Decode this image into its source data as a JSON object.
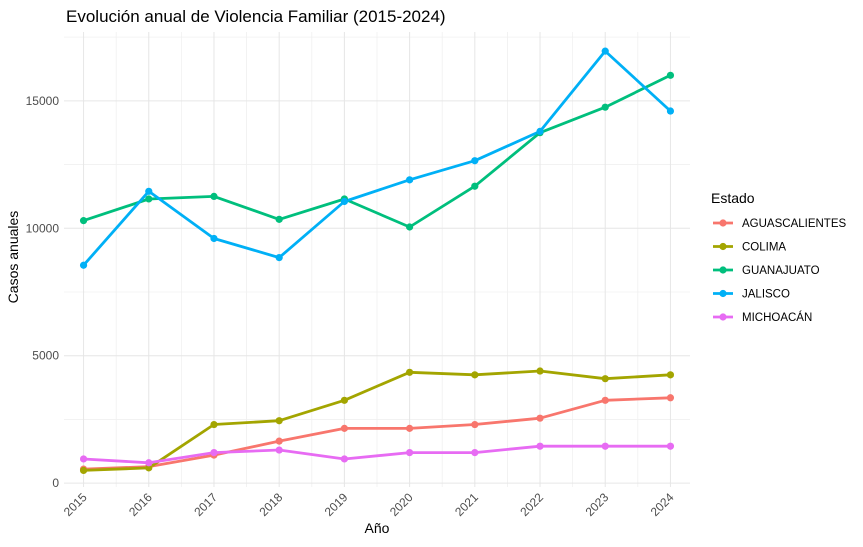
{
  "chart_data": {
    "type": "line",
    "title": "Evolución anual de Violencia Familiar (2015-2024)",
    "xlabel": "Año",
    "ylabel": "Casos anuales",
    "x": [
      "2015",
      "2016",
      "2017",
      "2018",
      "2019",
      "2020",
      "2021",
      "2022",
      "2023",
      "2024"
    ],
    "y_ticks": [
      0,
      5000,
      10000,
      15000
    ],
    "ylim": [
      -150,
      17700
    ],
    "grid": true,
    "legend": {
      "title": "Estado",
      "position": "right"
    },
    "series": [
      {
        "name": "AGUASCALIENTES",
        "color": "#F8766D",
        "values": [
          550,
          650,
          1100,
          1650,
          2150,
          2150,
          2300,
          2550,
          3250,
          3350
        ]
      },
      {
        "name": "COLIMA",
        "color": "#A3A500",
        "values": [
          500,
          600,
          2300,
          2450,
          3250,
          4350,
          4250,
          4400,
          4100,
          4250
        ]
      },
      {
        "name": "GUANAJUATO",
        "color": "#00BF7D",
        "values": [
          10300,
          11150,
          11250,
          10350,
          11150,
          10050,
          11650,
          13750,
          14750,
          16000
        ]
      },
      {
        "name": "JALISCO",
        "color": "#00B0F6",
        "values": [
          8550,
          11450,
          9600,
          8850,
          11050,
          11900,
          12650,
          13800,
          16950,
          14600
        ]
      },
      {
        "name": "MICHOACÁN",
        "color": "#E76BF3",
        "values": [
          950,
          800,
          1200,
          1300,
          950,
          1200,
          1200,
          1450,
          1450,
          1450
        ]
      }
    ]
  }
}
